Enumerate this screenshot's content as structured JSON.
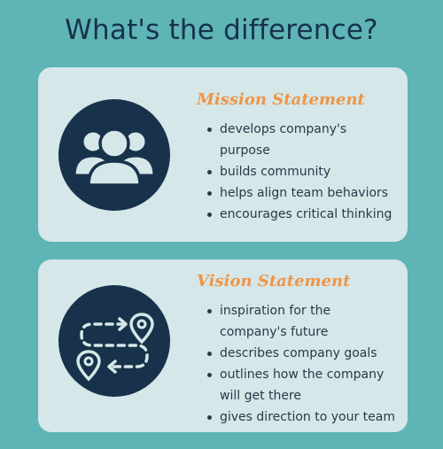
{
  "title": "What's the difference?",
  "colors": {
    "background": "#5fb4b5",
    "card": "#d5e7e8",
    "navy": "#17324a",
    "accent": "#ef9548"
  },
  "mission": {
    "heading": "Mission Statement",
    "icon": "people-group-icon",
    "items": [
      {
        "line1": "develops company's",
        "line2": "purpose"
      },
      {
        "line1": "builds community",
        "line2": ""
      },
      {
        "line1": "helps align team behaviors",
        "line2": ""
      },
      {
        "line1": "encourages critical thinking",
        "line2": ""
      }
    ]
  },
  "vision": {
    "heading": "Vision Statement",
    "icon": "route-pins-icon",
    "items": [
      {
        "line1": "inspiration for the",
        "line2": "company's future"
      },
      {
        "line1": "describes company goals",
        "line2": ""
      },
      {
        "line1": "outlines how the company",
        "line2": "will get there"
      },
      {
        "line1": "gives direction to your team",
        "line2": ""
      }
    ]
  }
}
